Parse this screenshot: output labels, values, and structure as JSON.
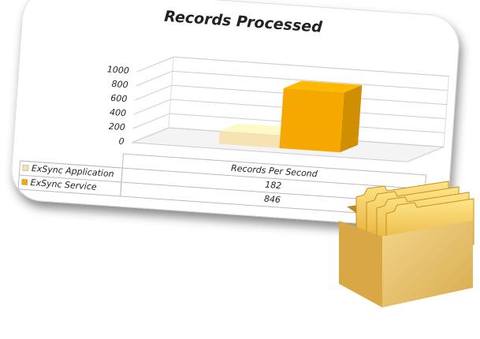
{
  "chart_data": {
    "type": "bar3d",
    "title": "Records Processed",
    "categories": [
      "Records Per Second"
    ],
    "series": [
      {
        "name": "ExSync Application",
        "color": "#f7e2b4",
        "values": [
          182
        ]
      },
      {
        "name": "ExSync Service",
        "color": "#f5a800",
        "values": [
          846
        ]
      }
    ],
    "ylim": [
      0,
      1000
    ],
    "yticks": [
      0,
      200,
      400,
      600,
      800,
      1000
    ],
    "grid": true
  }
}
